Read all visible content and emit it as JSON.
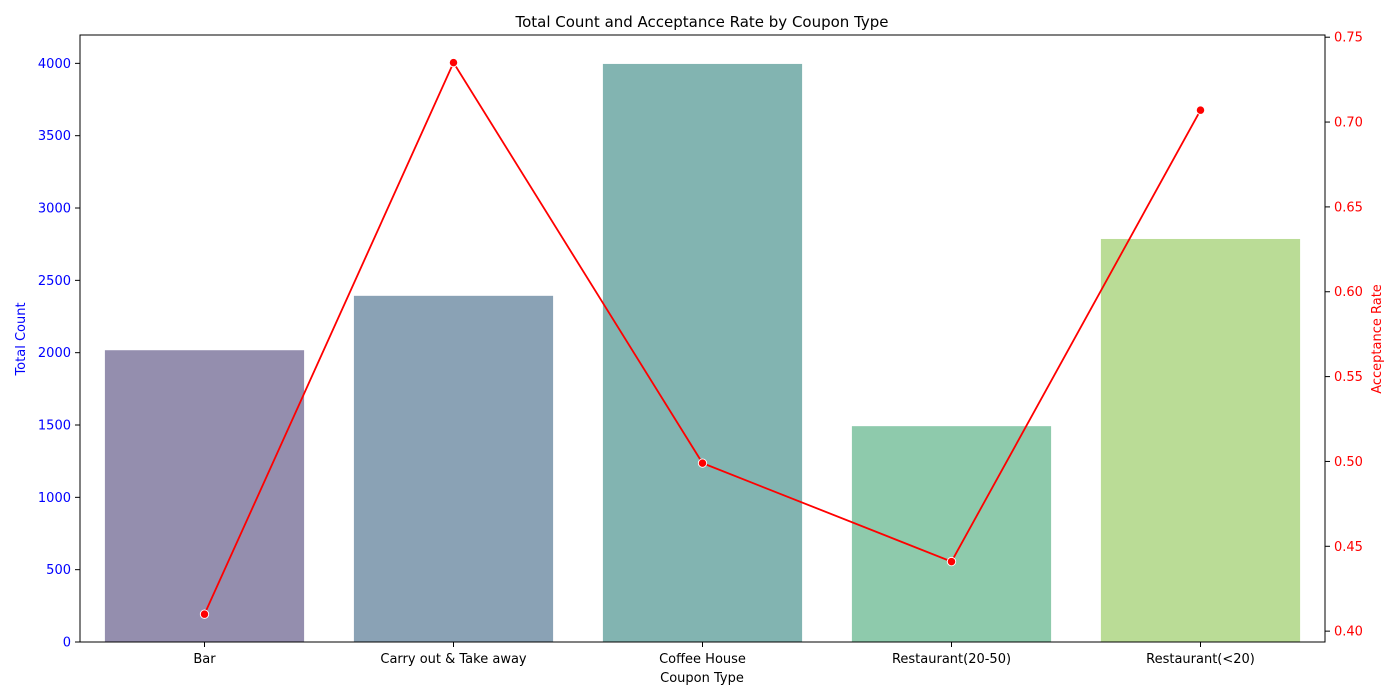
{
  "chart_data": {
    "type": "bar",
    "title": "Total Count and Acceptance Rate by Coupon Type",
    "xlabel": "Coupon Type",
    "categories": [
      "Bar",
      "Carry out & Take away",
      "Coffee House",
      "Restaurant(20-50)",
      "Restaurant(<20)"
    ],
    "bars": {
      "ylabel": "Total Count",
      "values": [
        2017,
        2393,
        3996,
        1492,
        2786
      ],
      "colors": [
        "#948eae",
        "#8aa2b5",
        "#82b4b1",
        "#8ecaac",
        "#badc96"
      ],
      "ylim": [
        0,
        4196
      ],
      "yticks": [
        0,
        500,
        1000,
        1500,
        2000,
        2500,
        3000,
        3500,
        4000
      ],
      "axis_color": "#0000ff"
    },
    "line": {
      "ylabel": "Acceptance Rate",
      "values": [
        0.41,
        0.735,
        0.499,
        0.441,
        0.707
      ],
      "color": "#ff0000",
      "ylim": [
        0.3936,
        0.7513
      ],
      "yticks": [
        0.4,
        0.45,
        0.5,
        0.55,
        0.6,
        0.65,
        0.7,
        0.75
      ],
      "tick_labels": [
        "0.40",
        "0.45",
        "0.50",
        "0.55",
        "0.60",
        "0.65",
        "0.70",
        "0.75"
      ]
    },
    "grid": false,
    "legend": "none"
  }
}
